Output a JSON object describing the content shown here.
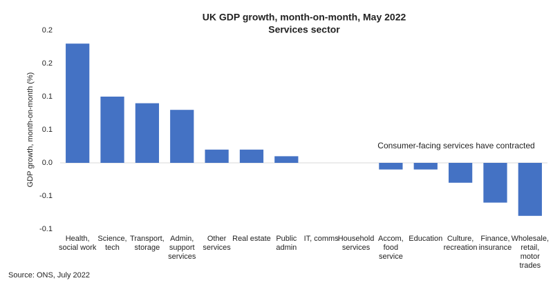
{
  "chart_data": {
    "type": "bar",
    "title": "UK GDP growth, month-on-month, May 2022",
    "subtitle": "Services sector",
    "y_label": "GDP growth, month-on-month (%)",
    "annotation": "Consumer-facing services have contracted",
    "source": "Source: ONS, July 2022",
    "categories": [
      "Health, social work",
      "Science, tech",
      "Transport, storage",
      "Admin, support services",
      "Other services",
      "Real estate",
      "Public admin",
      "IT, comms",
      "Household services",
      "Accom, food service",
      "Education",
      "Culture, recreation",
      "Finance, insurance",
      "Wholesale, retail, motor trades"
    ],
    "values": [
      0.18,
      0.1,
      0.09,
      0.08,
      0.02,
      0.02,
      0.01,
      0,
      0,
      -0.01,
      -0.01,
      -0.03,
      -0.06,
      -0.08
    ],
    "color": "#4472c4",
    "ylim": [
      -0.1,
      0.2
    ],
    "yticks": [
      0.2,
      {
        "value": 0.15,
        "label": "0.2"
      },
      0.1,
      {
        "value": 0.05,
        "label": "0.1"
      },
      {
        "value": 0,
        "label": "0.0"
      },
      {
        "value": -0.05,
        "label": "-0.1"
      },
      -0.1
    ],
    "grid": false
  }
}
